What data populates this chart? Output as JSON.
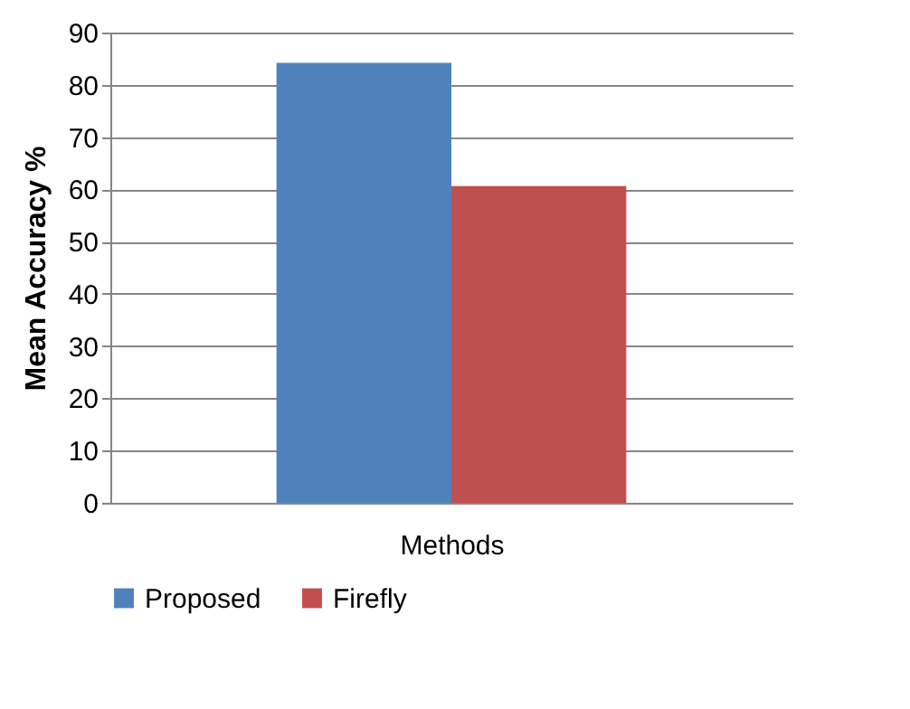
{
  "chart_data": {
    "type": "bar",
    "categories": [
      null
    ],
    "xlabel": "Methods",
    "ylabel": "Mean Accuracy %",
    "series": [
      {
        "name": "Proposed",
        "color": "#4f81bd",
        "values": [
          84.2
        ]
      },
      {
        "name": "Firefly",
        "color": "#c0504d",
        "values": [
          60.6
        ]
      }
    ],
    "ylim": [
      0,
      90
    ],
    "yticks": [
      0,
      10,
      20,
      30,
      40,
      50,
      60,
      70,
      80,
      90
    ],
    "grid": "y",
    "legend": "bottom"
  }
}
